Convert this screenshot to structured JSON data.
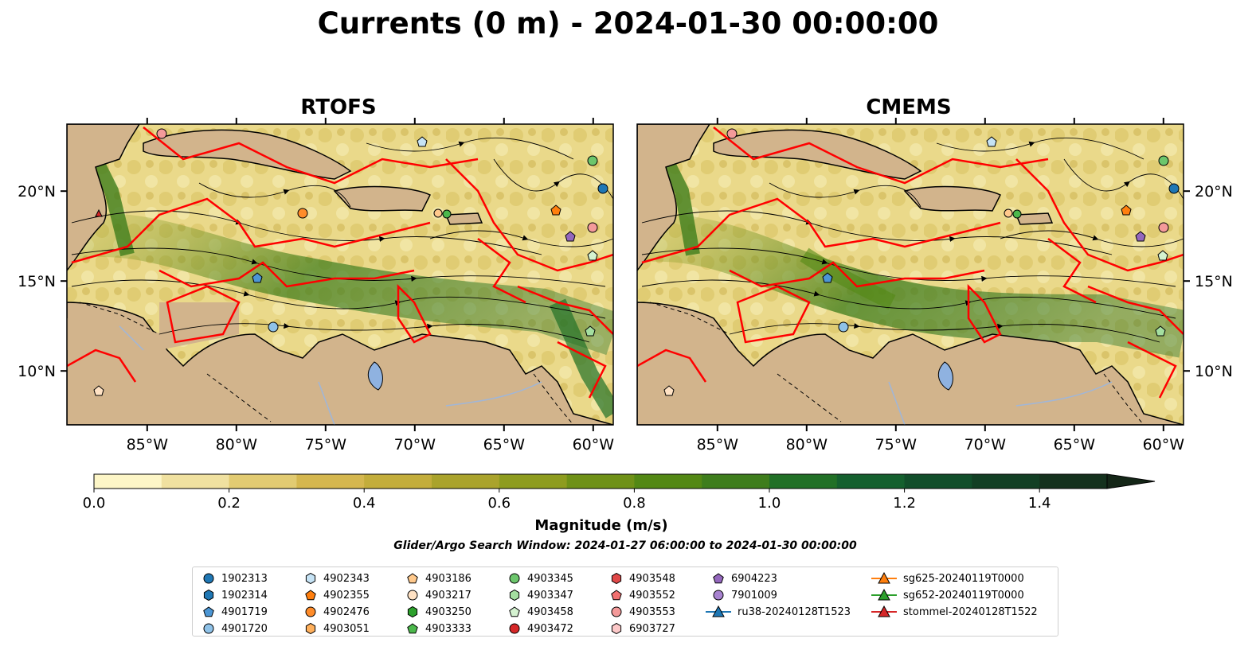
{
  "title": "Currents (0 m) - 2024-01-30 00:00:00",
  "panels": [
    {
      "title": "RTOFS"
    },
    {
      "title": "CMEMS"
    }
  ],
  "chart_data": {
    "type": "heatmap",
    "lon_ticks": [
      "85°W",
      "80°W",
      "75°W",
      "70°W",
      "65°W",
      "60°W"
    ],
    "lat_ticks": [
      "20°N",
      "15°N",
      "10°N"
    ],
    "colorbar": {
      "label": "Magnitude (m/s)",
      "ticks": [
        "0.0",
        "0.2",
        "0.4",
        "0.6",
        "0.8",
        "1.0",
        "1.2",
        "1.4"
      ],
      "range": [
        0.0,
        1.5
      ],
      "extend": "max",
      "colors": [
        "#fdf6c7",
        "#f0e1a0",
        "#e2cb72",
        "#d5b74f",
        "#c3ad3b",
        "#aaa32c",
        "#8e9c1f",
        "#6f9117",
        "#538814",
        "#3e7d1c",
        "#217026",
        "#14602e",
        "#114e2a",
        "#123f24",
        "#14311d",
        "#142617"
      ]
    },
    "land_color": "#d2b48c",
    "lake_color": "#8fb2e0",
    "contour_color": "#ff0000"
  },
  "search_window": "Glider/Argo Search Window: 2024-01-27 06:00:00 to 2024-01-30 00:00:00",
  "legend": [
    {
      "label": "1902313",
      "marker": "circle",
      "color": "#1f77b4"
    },
    {
      "label": "1902314",
      "marker": "hexagon",
      "color": "#1f77b4"
    },
    {
      "label": "4901719",
      "marker": "pentagon",
      "color": "#4c96d4"
    },
    {
      "label": "4901720",
      "marker": "circle",
      "color": "#8fc2e8"
    },
    {
      "label": "4902343",
      "marker": "hexagon",
      "color": "#c6e3f5"
    },
    {
      "label": "4902355",
      "marker": "pentagon",
      "color": "#ff7f0e"
    },
    {
      "label": "4902476",
      "marker": "circle",
      "color": "#ff8c2a"
    },
    {
      "label": "4903051",
      "marker": "hexagon",
      "color": "#ffb05c"
    },
    {
      "label": "4903186",
      "marker": "pentagon",
      "color": "#ffc98c"
    },
    {
      "label": "4903217",
      "marker": "circle",
      "color": "#ffe2c4"
    },
    {
      "label": "4903250",
      "marker": "hexagon",
      "color": "#2ca02c"
    },
    {
      "label": "4903333",
      "marker": "pentagon",
      "color": "#4cb84c"
    },
    {
      "label": "4903345",
      "marker": "circle",
      "color": "#6cc66c"
    },
    {
      "label": "4903347",
      "marker": "hexagon",
      "color": "#a4dfa0"
    },
    {
      "label": "4903458",
      "marker": "pentagon",
      "color": "#d4f2d0"
    },
    {
      "label": "4903472",
      "marker": "circle",
      "color": "#d62728"
    },
    {
      "label": "4903548",
      "marker": "hexagon",
      "color": "#e04848"
    },
    {
      "label": "4903552",
      "marker": "pentagon",
      "color": "#f07070"
    },
    {
      "label": "4903553",
      "marker": "circle",
      "color": "#f49a9a"
    },
    {
      "label": "6903727",
      "marker": "hexagon",
      "color": "#fcc8c8"
    },
    {
      "label": "6904223",
      "marker": "pentagon",
      "color": "#9467bd"
    },
    {
      "label": "7901009",
      "marker": "circle",
      "color": "#a883d0"
    },
    {
      "label": "ru38-20240128T1523",
      "marker": "triangle",
      "color": "#1f77b4"
    },
    {
      "label": "sg625-20240119T0000",
      "marker": "triangle",
      "color": "#ff7f0e"
    },
    {
      "label": "sg652-20240119T0000",
      "marker": "triangle",
      "color": "#2ca02c"
    },
    {
      "label": "stommel-20240128T1522",
      "marker": "triangle",
      "color": "#d62728"
    }
  ]
}
